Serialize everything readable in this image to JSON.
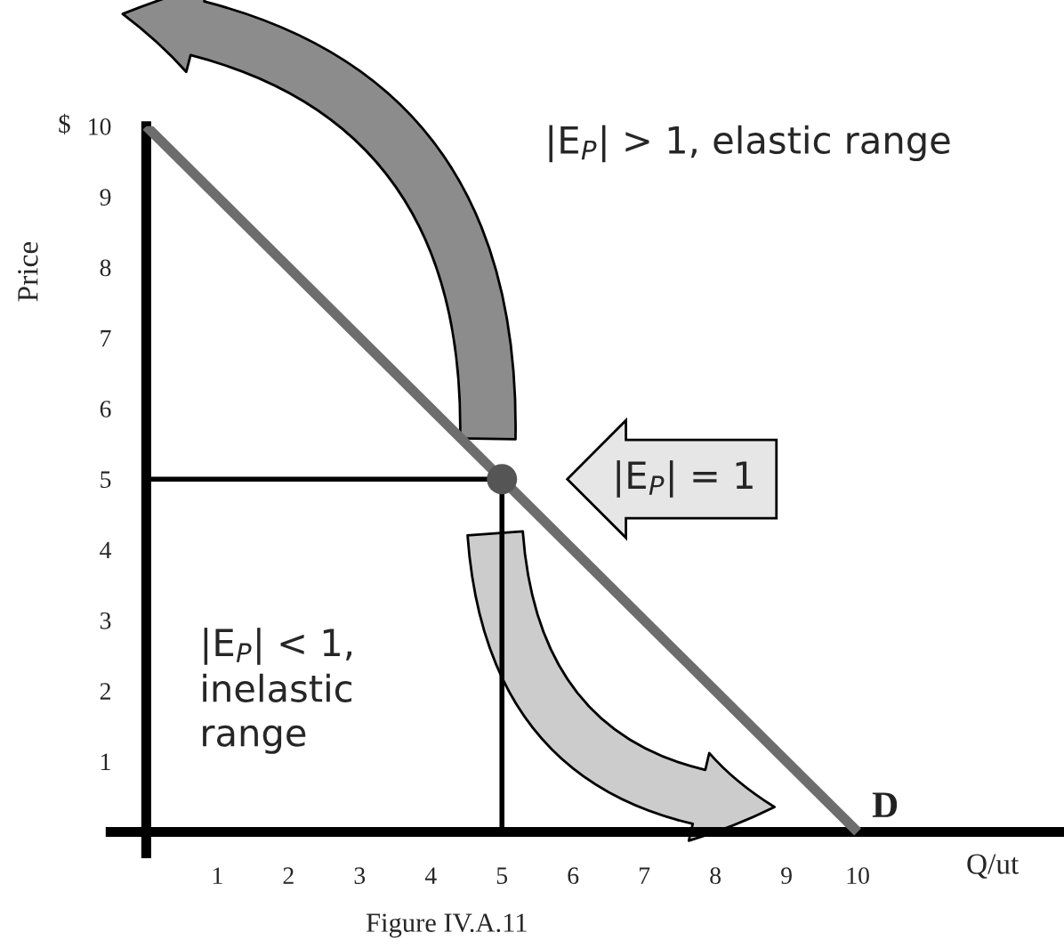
{
  "chart_data": {
    "type": "line",
    "xlabel": "Q/ut",
    "ylabel": "Price",
    "xlim": [
      -0.5,
      12.9
    ],
    "ylim": [
      -0.3,
      10
    ],
    "xticks": [
      1,
      2,
      3,
      4,
      5,
      6,
      7,
      8,
      9,
      10
    ],
    "yticks": [
      1,
      2,
      3,
      4,
      5,
      6,
      7,
      8,
      9,
      10
    ],
    "series": [
      {
        "name": "D",
        "color": "#6d6d6d",
        "x": [
          0,
          10
        ],
        "values": [
          10,
          0
        ]
      },
      {
        "type": "line",
        "color": "#000000",
        "x": [
          0,
          5
        ],
        "values": [
          5,
          5
        ]
      },
      {
        "type": "line",
        "color": "#000000",
        "x": [
          5,
          5
        ],
        "values": [
          5,
          0
        ]
      },
      {
        "type": "scatter",
        "color": "#555555",
        "x": [
          5
        ],
        "values": [
          5
        ]
      }
    ],
    "annotations": [
      "$",
      "|E$_{P}$| > 1, elastic range",
      "|E$_{P}$| = 1",
      "|E$_{P}$| < 1, inelastic range",
      "Figure IV.A.11"
    ],
    "grid": false,
    "legend": false
  }
}
